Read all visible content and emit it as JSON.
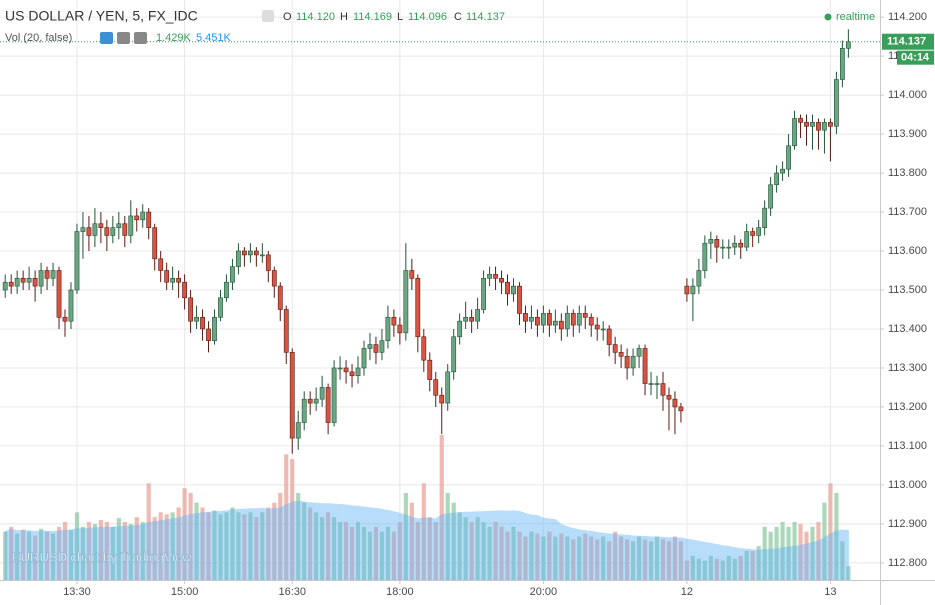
{
  "chart_data": {
    "type": "candlestick",
    "title": "US DOLLAR / YEN, 5, FX_IDC",
    "ohlc_legend": [
      "O",
      "114.120",
      "H",
      "114.169",
      "L",
      "114.096",
      "C",
      "114.137"
    ],
    "volume_legend": [
      "Vol (20, false)",
      "1.429K",
      "5.451K"
    ],
    "realtime": "realtime",
    "last_price_label": "114.137",
    "countdown": "04:14",
    "watermark": "EURUSD chart by TradingView",
    "up_color": "#6ba583",
    "up_border": "#225437",
    "down_color": "#d75442",
    "down_border": "#5b1a13",
    "volume_up_color": "#8fc9a3",
    "volume_down_color": "#e9a39a",
    "volume_ma_color": "#64b5f6",
    "volume_ma_period": 20,
    "grid": true,
    "xlim": [
      -0.87,
      146.29
    ],
    "xticks": [
      {
        "value": 12,
        "label": "13:30"
      },
      {
        "value": 30,
        "label": "15:00"
      },
      {
        "value": 48,
        "label": "16:30"
      },
      {
        "value": 66,
        "label": "18:00"
      },
      {
        "value": 90,
        "label": "20:00"
      },
      {
        "value": 114,
        "label": "12"
      },
      {
        "value": 138,
        "label": "13"
      }
    ],
    "ylim": [
      112.756,
      114.244
    ],
    "yticks": [
      {
        "value": 114.2,
        "label": "114.200"
      },
      {
        "value": 114.1,
        "label": "114.100"
      },
      {
        "value": 114.0,
        "label": "114.000"
      },
      {
        "value": 113.9,
        "label": "113.900"
      },
      {
        "value": 113.8,
        "label": "113.800"
      },
      {
        "value": 113.7,
        "label": "113.700"
      },
      {
        "value": 113.6,
        "label": "113.600"
      },
      {
        "value": 113.5,
        "label": "113.500"
      },
      {
        "value": 113.4,
        "label": "113.400"
      },
      {
        "value": 113.3,
        "label": "113.300"
      },
      {
        "value": 113.2,
        "label": "113.200"
      },
      {
        "value": 113.1,
        "label": "113.100"
      },
      {
        "value": 113.0,
        "label": "113.000"
      },
      {
        "value": 112.9,
        "label": "112.900"
      },
      {
        "value": 112.8,
        "label": "112.800"
      }
    ],
    "last_price": 114.137,
    "vol_ylim": [
      0,
      60
    ],
    "open": [
      113.5,
      113.52,
      113.51,
      113.53,
      113.52,
      113.53,
      113.51,
      113.55,
      113.53,
      113.55,
      113.43,
      113.42,
      113.5,
      113.65,
      113.66,
      113.64,
      113.67,
      113.66,
      113.64,
      113.66,
      113.67,
      113.64,
      113.69,
      113.68,
      113.7,
      113.66,
      113.58,
      113.55,
      113.52,
      113.53,
      113.52,
      113.48,
      113.42,
      113.43,
      113.4,
      113.37,
      113.43,
      113.48,
      113.52,
      113.56,
      113.6,
      113.59,
      113.6,
      113.59,
      113.59,
      113.55,
      113.51,
      113.45,
      113.34,
      113.12,
      113.16,
      113.22,
      113.21,
      113.22,
      113.25,
      113.16,
      113.3,
      113.3,
      113.29,
      113.28,
      113.3,
      113.35,
      113.36,
      113.34,
      113.37,
      113.43,
      113.41,
      113.39,
      113.55,
      113.53,
      113.38,
      113.32,
      113.27,
      113.23,
      113.21,
      113.29,
      113.38,
      113.42,
      113.43,
      113.42,
      113.45,
      113.53,
      113.54,
      113.53,
      113.52,
      113.49,
      113.51,
      113.44,
      113.42,
      113.43,
      113.41,
      113.44,
      113.41,
      113.42,
      113.4,
      113.44,
      113.41,
      113.44,
      113.43,
      113.41,
      113.4,
      113.4,
      113.36,
      113.34,
      113.33,
      113.3,
      113.33,
      113.35,
      113.26,
      113.26,
      113.26,
      113.23,
      113.22,
      113.2,
      113.51,
      113.49,
      113.51,
      113.55,
      113.62,
      113.63,
      113.61,
      113.61,
      113.61,
      113.62,
      113.61,
      113.65,
      113.64,
      113.66,
      113.71,
      113.77,
      113.8,
      113.81,
      113.87,
      113.94,
      113.93,
      113.92,
      113.93,
      113.91,
      113.93,
      113.92,
      114.04,
      114.12
    ],
    "high": [
      113.54,
      113.54,
      113.55,
      113.55,
      113.56,
      113.55,
      113.57,
      113.56,
      113.57,
      113.56,
      113.45,
      113.52,
      113.67,
      113.7,
      113.69,
      113.71,
      113.7,
      113.68,
      113.69,
      113.7,
      113.69,
      113.73,
      113.71,
      113.72,
      113.71,
      113.67,
      113.6,
      113.57,
      113.56,
      113.55,
      113.54,
      113.5,
      113.46,
      113.45,
      113.42,
      113.45,
      113.5,
      113.54,
      113.58,
      113.62,
      113.61,
      113.62,
      113.61,
      113.62,
      113.6,
      113.56,
      113.52,
      113.46,
      113.35,
      113.19,
      113.24,
      113.24,
      113.25,
      113.28,
      113.26,
      113.32,
      113.33,
      113.32,
      113.31,
      113.33,
      113.37,
      113.39,
      113.38,
      113.4,
      113.46,
      113.45,
      113.43,
      113.62,
      113.58,
      113.54,
      113.4,
      113.34,
      113.29,
      113.25,
      113.31,
      113.4,
      113.44,
      113.47,
      113.45,
      113.48,
      113.55,
      113.56,
      113.56,
      113.55,
      113.54,
      113.53,
      113.52,
      113.46,
      113.46,
      113.45,
      113.46,
      113.45,
      113.45,
      113.44,
      113.46,
      113.45,
      113.46,
      113.46,
      113.44,
      113.43,
      113.42,
      113.41,
      113.38,
      113.36,
      113.35,
      113.35,
      113.36,
      113.36,
      113.29,
      113.28,
      113.29,
      113.25,
      113.24,
      113.21,
      113.53,
      113.53,
      113.58,
      113.64,
      113.65,
      113.64,
      113.63,
      113.63,
      113.64,
      113.63,
      113.67,
      113.66,
      113.68,
      113.73,
      113.79,
      113.82,
      113.83,
      113.9,
      113.96,
      113.95,
      113.95,
      113.95,
      113.94,
      113.94,
      113.94,
      114.06,
      114.14,
      114.169
    ],
    "low": [
      113.48,
      113.49,
      113.49,
      113.5,
      113.5,
      113.47,
      113.49,
      113.5,
      113.51,
      113.4,
      113.38,
      113.4,
      113.49,
      113.58,
      113.6,
      113.61,
      113.62,
      113.6,
      113.62,
      113.63,
      113.61,
      113.62,
      113.65,
      113.66,
      113.63,
      113.55,
      113.52,
      113.5,
      113.5,
      113.48,
      113.45,
      113.39,
      113.4,
      113.37,
      113.34,
      113.36,
      113.42,
      113.47,
      113.5,
      113.54,
      113.56,
      113.57,
      113.56,
      113.57,
      113.52,
      113.48,
      113.42,
      113.31,
      113.08,
      113.09,
      113.14,
      113.18,
      113.19,
      113.2,
      113.13,
      113.15,
      113.27,
      113.26,
      113.25,
      113.26,
      113.28,
      113.32,
      113.31,
      113.32,
      113.35,
      113.38,
      113.36,
      113.37,
      113.5,
      113.34,
      113.29,
      113.24,
      113.2,
      113.13,
      113.19,
      113.27,
      113.36,
      113.4,
      113.39,
      113.4,
      113.44,
      113.51,
      113.5,
      113.49,
      113.46,
      113.47,
      113.41,
      113.39,
      113.4,
      113.38,
      113.39,
      113.38,
      113.39,
      113.37,
      113.38,
      113.38,
      113.39,
      113.4,
      113.38,
      113.37,
      113.37,
      113.33,
      113.31,
      113.3,
      113.27,
      113.28,
      113.3,
      113.23,
      113.23,
      113.22,
      113.19,
      113.14,
      113.13,
      113.16,
      113.47,
      113.42,
      113.49,
      113.53,
      113.58,
      113.57,
      113.58,
      113.58,
      113.59,
      113.58,
      113.6,
      113.61,
      113.62,
      113.64,
      113.69,
      113.75,
      113.78,
      113.79,
      113.86,
      113.89,
      113.87,
      113.86,
      113.86,
      113.85,
      113.83,
      113.9,
      114.02,
      114.096
    ],
    "close": [
      113.52,
      113.51,
      113.53,
      113.52,
      113.53,
      113.51,
      113.55,
      113.53,
      113.55,
      113.43,
      113.42,
      113.5,
      113.65,
      113.66,
      113.64,
      113.67,
      113.66,
      113.64,
      113.66,
      113.67,
      113.64,
      113.69,
      113.68,
      113.7,
      113.66,
      113.58,
      113.55,
      113.52,
      113.53,
      113.52,
      113.48,
      113.42,
      113.43,
      113.4,
      113.37,
      113.43,
      113.48,
      113.52,
      113.56,
      113.6,
      113.59,
      113.6,
      113.59,
      113.59,
      113.55,
      113.51,
      113.45,
      113.34,
      113.12,
      113.16,
      113.22,
      113.21,
      113.22,
      113.25,
      113.16,
      113.3,
      113.3,
      113.29,
      113.28,
      113.3,
      113.35,
      113.36,
      113.34,
      113.37,
      113.43,
      113.41,
      113.39,
      113.55,
      113.53,
      113.38,
      113.32,
      113.27,
      113.23,
      113.21,
      113.29,
      113.38,
      113.42,
      113.43,
      113.42,
      113.45,
      113.53,
      113.54,
      113.53,
      113.52,
      113.49,
      113.51,
      113.44,
      113.42,
      113.43,
      113.41,
      113.44,
      113.41,
      113.42,
      113.4,
      113.44,
      113.41,
      113.44,
      113.43,
      113.41,
      113.4,
      113.4,
      113.36,
      113.34,
      113.33,
      113.3,
      113.33,
      113.35,
      113.26,
      113.26,
      113.26,
      113.23,
      113.22,
      113.2,
      113.19,
      113.49,
      113.51,
      113.55,
      113.62,
      113.63,
      113.61,
      113.61,
      113.61,
      113.62,
      113.61,
      113.65,
      113.64,
      113.66,
      113.71,
      113.77,
      113.8,
      113.81,
      113.87,
      113.94,
      113.93,
      113.92,
      113.93,
      113.91,
      113.93,
      113.92,
      114.04,
      114.12,
      114.137
    ],
    "volume": [
      5,
      5.5,
      4.8,
      5.2,
      5,
      4.6,
      5.3,
      5,
      4.8,
      5.5,
      6,
      5.2,
      7,
      5.5,
      6,
      5.8,
      6.2,
      6,
      5.5,
      6.4,
      6,
      5.8,
      6.5,
      6,
      10,
      6.5,
      7,
      6.8,
      7,
      7.5,
      9.5,
      9,
      8,
      7.5,
      7,
      7.2,
      6.8,
      7,
      7.5,
      7,
      6.8,
      7,
      6.5,
      7,
      7.5,
      8,
      9,
      13,
      12.5,
      9,
      8,
      7.5,
      7,
      6.5,
      7,
      6.5,
      6,
      6,
      5.5,
      6,
      5.5,
      5,
      5.5,
      5,
      5.5,
      5,
      6,
      9,
      8,
      6,
      10,
      6.5,
      6,
      15,
      9,
      8,
      7,
      6.5,
      6,
      6.5,
      6,
      5.5,
      6,
      5.5,
      5,
      5.5,
      5,
      4.5,
      5,
      4.8,
      4.5,
      5,
      4.5,
      4.8,
      4.5,
      4.2,
      4.5,
      4.8,
      4.5,
      4.2,
      4.5,
      4,
      5,
      4.5,
      4.2,
      4,
      4.5,
      4.2,
      4,
      4.5,
      4.2,
      4,
      4.5,
      4,
      2,
      2.5,
      2.2,
      2,
      2.5,
      2.2,
      2,
      2.5,
      2.2,
      2.5,
      3,
      3,
      3.5,
      5.5,
      5,
      5.5,
      6,
      5.5,
      6,
      5.8,
      5,
      5.5,
      6,
      8,
      10,
      9,
      4,
      1.429
    ]
  }
}
